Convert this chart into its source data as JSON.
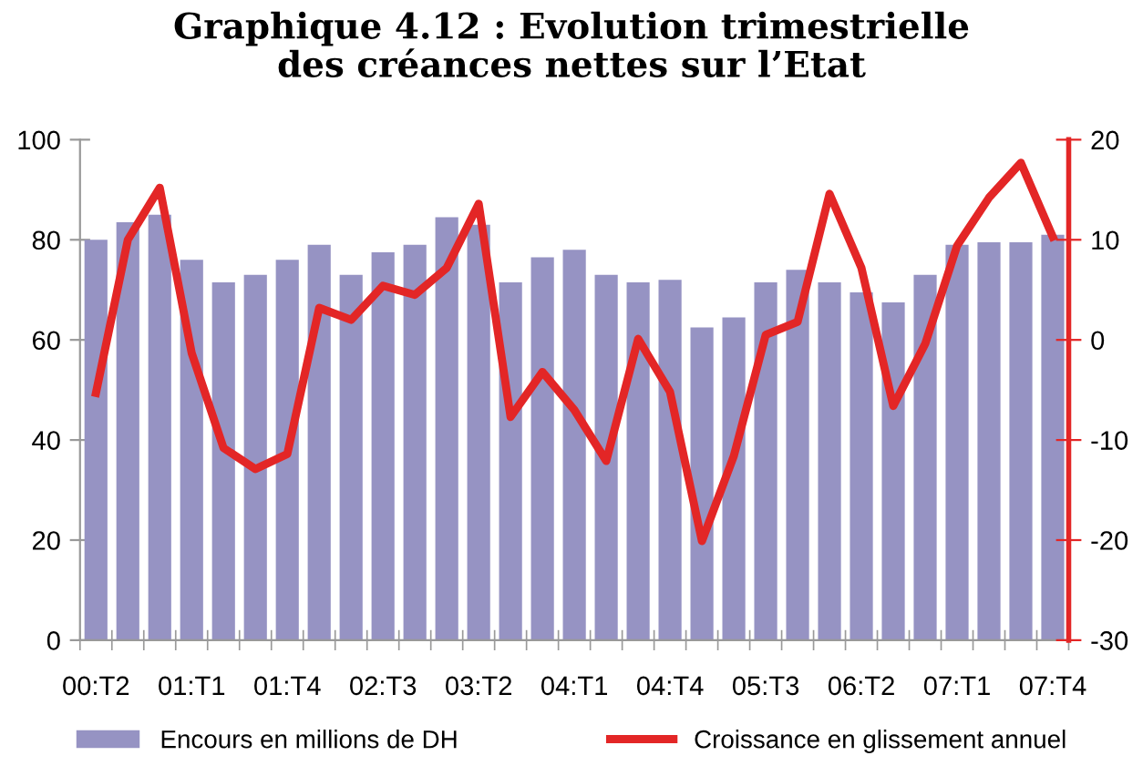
{
  "chart_data": {
    "type": "bar",
    "title": "Graphique 4.12 : Evolution trimestrielle\ndes créances nettes sur l’Etat",
    "categories": [
      "00:T2",
      null,
      null,
      "01:T1",
      null,
      null,
      "01:T4",
      null,
      null,
      "02:T3",
      null,
      null,
      "03:T2",
      null,
      null,
      "04:T1",
      null,
      null,
      "04:T4",
      null,
      null,
      "05:T3",
      null,
      null,
      "06:T2",
      null,
      null,
      "07:T1",
      null,
      null,
      "07:T4"
    ],
    "series": [
      {
        "name": "Encours en millions de DH",
        "color": "#9693c3",
        "values": [
          80,
          83.5,
          85,
          76,
          71.5,
          73,
          76,
          79,
          73,
          77.5,
          79,
          84.5,
          83,
          71.5,
          76.5,
          78,
          73,
          71.5,
          72,
          62.5,
          64.5,
          71.5,
          74,
          71.5,
          69.5,
          67.5,
          73,
          79,
          79.5,
          79.5,
          81
        ]
      },
      {
        "name": "Croissance en glissement annuel",
        "type": "line",
        "axis": "y2",
        "color": "#e32626",
        "values": [
          -5.3,
          10,
          15.2,
          -1.3,
          -10.8,
          -12.9,
          -11.4,
          3.2,
          2,
          5.4,
          4.5,
          7.2,
          13.6,
          -7.7,
          -3.2,
          -7,
          -12.1,
          0.1,
          -5.2,
          -20.1,
          -11.6,
          0.5,
          1.8,
          14.6,
          7.2,
          -6.6,
          -0.4,
          9.4,
          14.2,
          17.7,
          10.3
        ]
      }
    ],
    "ylim": [
      0,
      100
    ],
    "yticks": [
      0,
      20,
      40,
      60,
      80,
      100
    ],
    "y2lim": [
      -30,
      20
    ],
    "y2ticks": [
      -30,
      -20,
      -10,
      0,
      10,
      20
    ],
    "grid": false,
    "legend": "bottom",
    "marker": "none",
    "line_style": "solid"
  }
}
